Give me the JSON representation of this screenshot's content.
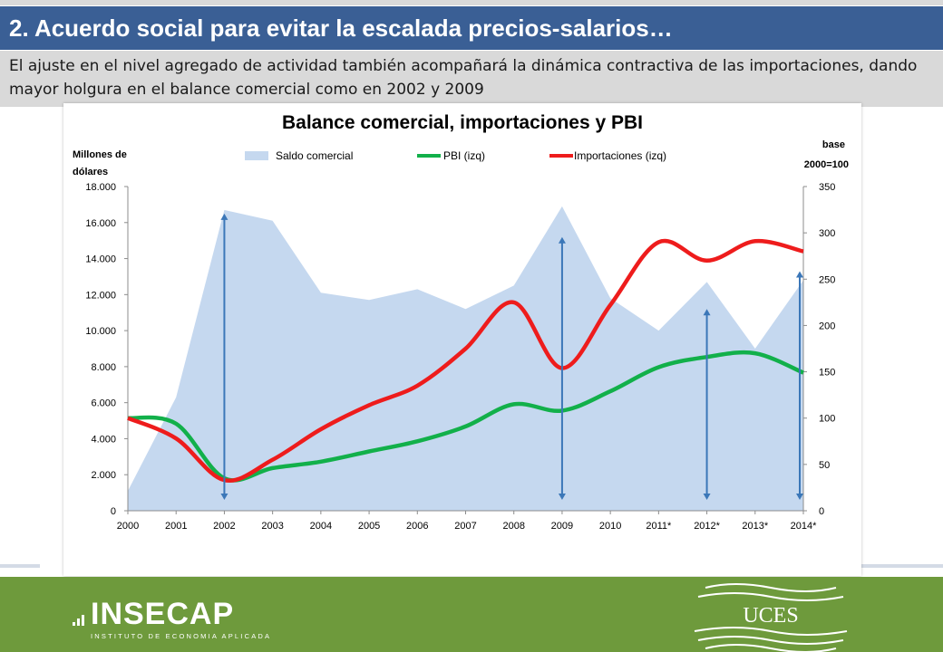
{
  "slide": {
    "title": "2. Acuerdo social para evitar la escalada precios-salarios…",
    "subtitle": "El ajuste en el nivel agregado de actividad también acompañará la dinámica contractiva de las importaciones, dando mayor holgura en el balance comercial como en 2002 y 2009"
  },
  "footer": {
    "left_logo_text": "INSECAP",
    "left_logo_subtext": "INSTITUTO DE ECONOMIA APLICADA",
    "right_logo_text": "UCES"
  },
  "colors": {
    "title_bar": "#3a5f95",
    "saldo_area": "#c5d8ef",
    "pbi_line": "#12b04a",
    "importaciones_line": "#ee1c1c",
    "arrows": "#3b77b8",
    "footer": "#6e9a3c"
  },
  "chart_data": {
    "type": "line",
    "title": "Balance comercial, importaciones y PBI",
    "left_axis_label": [
      "Millones de",
      "dólares"
    ],
    "right_axis_label": [
      "base",
      "2000=100"
    ],
    "categories": [
      "2000",
      "2001",
      "2002",
      "2003",
      "2004",
      "2005",
      "2006",
      "2007",
      "2008",
      "2009",
      "2010",
      "2011*",
      "2012*",
      "2013*",
      "2014*"
    ],
    "y_left": {
      "min": 0,
      "max": 18000,
      "ticks": [
        "0",
        "2.000",
        "4.000",
        "6.000",
        "8.000",
        "10.000",
        "12.000",
        "14.000",
        "16.000",
        "18.000"
      ]
    },
    "y_right": {
      "min": 0,
      "max": 350,
      "ticks": [
        "0",
        "50",
        "100",
        "150",
        "200",
        "250",
        "300",
        "350"
      ]
    },
    "legend_position": "top",
    "series": [
      {
        "name": "Saldo comercial",
        "type": "area",
        "axis": "left",
        "values": [
          1100,
          6300,
          16700,
          16100,
          12100,
          11700,
          12300,
          11200,
          12500,
          16900,
          11800,
          10000,
          12700,
          9000,
          12800
        ]
      },
      {
        "name": "PBI (izq)",
        "type": "line",
        "axis": "right",
        "values": [
          100,
          94,
          35,
          46,
          53,
          64,
          75,
          91,
          115,
          108,
          129,
          155,
          166,
          170,
          149
        ]
      },
      {
        "name": "Importaciones (izq)",
        "type": "line",
        "axis": "right",
        "values": [
          100,
          78,
          33,
          55,
          88,
          114,
          135,
          175,
          225,
          154,
          222,
          290,
          270,
          291,
          280
        ]
      }
    ],
    "annotations": [
      {
        "kind": "double-arrow",
        "category": "2002",
        "from": 0,
        "to": 16500,
        "axis": "left"
      },
      {
        "kind": "double-arrow",
        "category": "2009",
        "from": 0,
        "to": 15200,
        "axis": "left"
      },
      {
        "kind": "double-arrow",
        "category": "2012*",
        "from": 0,
        "to": 11200,
        "axis": "left"
      },
      {
        "kind": "double-arrow",
        "category": "2014*",
        "from": 0,
        "to": 13300,
        "axis": "left"
      }
    ]
  }
}
